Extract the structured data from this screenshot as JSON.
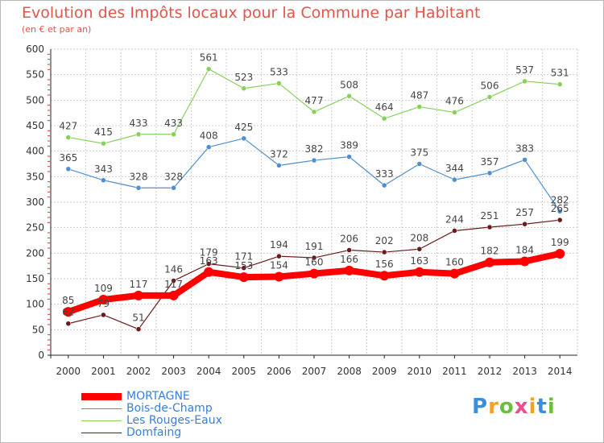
{
  "title": "Evolution des Impôts locaux pour la Commune par Habitant",
  "subtitle": "(en € et par an)",
  "logo": {
    "text": "Proxiti",
    "colors": [
      "#3b8fd9",
      "#f4a020",
      "#6cbf3c",
      "#e94f8a",
      "#f4a020",
      "#3b8fd9",
      "#6cbf3c"
    ]
  },
  "chart_data": {
    "type": "line",
    "x": [
      "2000",
      "2001",
      "2002",
      "2003",
      "2004",
      "2005",
      "2006",
      "2007",
      "2008",
      "2009",
      "2010",
      "2011",
      "2012",
      "2013",
      "2014"
    ],
    "ylim": [
      0,
      600
    ],
    "yticks": [
      0,
      50,
      100,
      150,
      200,
      250,
      300,
      350,
      400,
      450,
      500,
      550,
      600
    ],
    "grid": true,
    "legend_position": "bottom-left",
    "series": [
      {
        "name": "MORTAGNE",
        "color": "#ff0000",
        "values": [
          85,
          109,
          117,
          117,
          163,
          153,
          154,
          160,
          166,
          156,
          163,
          160,
          182,
          184,
          199
        ],
        "labels": [
          "85",
          "109",
          "117",
          "117",
          "163",
          "153",
          "154",
          "160",
          "166",
          "156",
          "163",
          "160",
          "182",
          "184",
          "199"
        ]
      },
      {
        "name": "Bois-de-Champ",
        "color": "#4f8fcf",
        "values": [
          365,
          343,
          328,
          328,
          408,
          425,
          372,
          382,
          389,
          333,
          375,
          344,
          357,
          383,
          282
        ],
        "labels": [
          "365",
          "343",
          "328",
          "328",
          "408",
          "425",
          "372",
          "382",
          "389",
          "333",
          "375",
          "344",
          "357",
          "383",
          "282"
        ]
      },
      {
        "name": "Les Rouges-Eaux",
        "color": "#88d05a",
        "values": [
          427,
          415,
          433,
          433,
          561,
          523,
          533,
          477,
          508,
          464,
          487,
          476,
          506,
          537,
          531
        ],
        "labels": [
          "427",
          "415",
          "433",
          "433",
          "561",
          "523",
          "533",
          "477",
          "508",
          "464",
          "487",
          "476",
          "506",
          "537",
          "531"
        ]
      },
      {
        "name": "Domfaing",
        "color": "#6a1a1a",
        "values": [
          62,
          79,
          51,
          146,
          179,
          171,
          194,
          191,
          206,
          202,
          208,
          244,
          251,
          257,
          265
        ],
        "labels": [
          "62",
          "79",
          "51",
          "146",
          "179",
          "171",
          "194",
          "191",
          "206",
          "202",
          "208",
          "244",
          "251",
          "257",
          "265"
        ]
      }
    ]
  }
}
